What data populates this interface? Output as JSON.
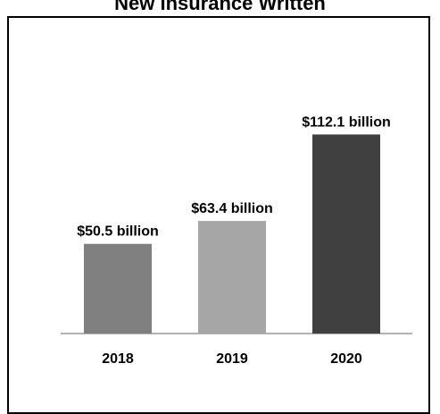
{
  "chart_data": {
    "type": "bar",
    "title": "New Insurance Written",
    "categories": [
      "2018",
      "2019",
      "2020"
    ],
    "values": [
      50.5,
      63.4,
      112.1
    ],
    "data_labels": [
      "$50.5 billion",
      "$63.4 billion",
      "$112.1 billion"
    ],
    "colors": [
      "#808080",
      "#a6a6a6",
      "#404040"
    ],
    "ylim": [
      0,
      140
    ],
    "xlabel": "",
    "ylabel": "",
    "grid": false,
    "legend": "none"
  }
}
